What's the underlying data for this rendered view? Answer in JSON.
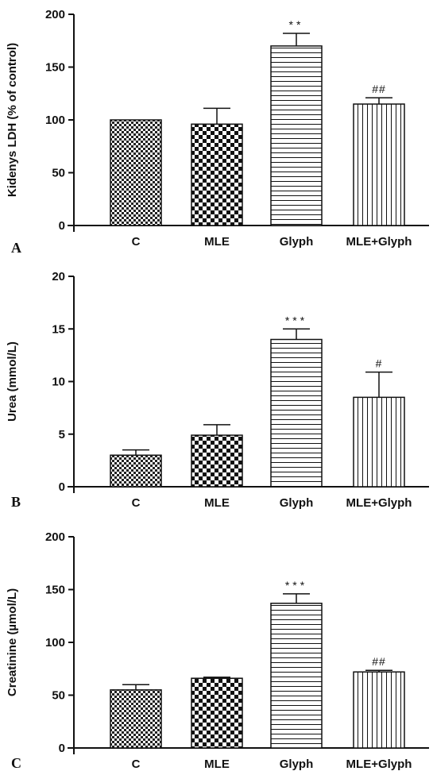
{
  "chart_data": [
    {
      "type": "bar",
      "panel": "A",
      "ylabel": "Kidenys LDH (% of control)",
      "categories": [
        "C",
        "MLE",
        "Glyph",
        "MLE+Glyph"
      ],
      "values": [
        100,
        96,
        170,
        115
      ],
      "errors": [
        0,
        15,
        12,
        6
      ],
      "annotations": [
        "",
        "",
        "**",
        "##"
      ],
      "ylim": [
        0,
        200
      ],
      "yticks": [
        0,
        50,
        100,
        150,
        200
      ],
      "patterns": [
        "fine-check",
        "coarse-check",
        "horizontal-lines",
        "vertical-lines"
      ]
    },
    {
      "type": "bar",
      "panel": "B",
      "ylabel": "Urea (mmol/L)",
      "categories": [
        "C",
        "MLE",
        "Glyph",
        "MLE+Glyph"
      ],
      "values": [
        3,
        4.9,
        14,
        8.5
      ],
      "errors": [
        0.5,
        1.0,
        1.0,
        2.4
      ],
      "annotations": [
        "",
        "",
        "***",
        "#"
      ],
      "ylim": [
        0,
        20
      ],
      "yticks": [
        0,
        5,
        10,
        15,
        20
      ],
      "patterns": [
        "fine-check",
        "coarse-check",
        "horizontal-lines",
        "vertical-lines"
      ]
    },
    {
      "type": "bar",
      "panel": "C",
      "ylabel": "Creatinine (µmol/L)",
      "categories": [
        "C",
        "MLE",
        "Glyph",
        "MLE+Glyph"
      ],
      "values": [
        55,
        66,
        137,
        72
      ],
      "errors": [
        5,
        1,
        9,
        1.5
      ],
      "annotations": [
        "",
        "",
        "***",
        "##"
      ],
      "ylim": [
        0,
        200
      ],
      "yticks": [
        0,
        50,
        100,
        150,
        200
      ],
      "patterns": [
        "fine-check",
        "coarse-check",
        "horizontal-lines",
        "vertical-lines"
      ]
    }
  ]
}
